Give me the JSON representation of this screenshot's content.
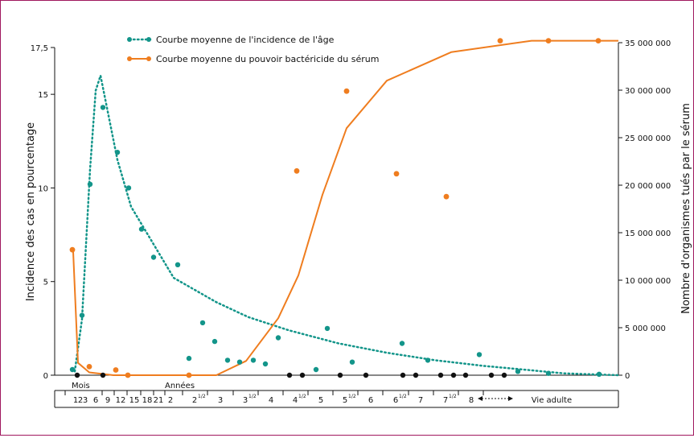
{
  "chart_data": {
    "type": "line",
    "title": "",
    "legend": {
      "placement": "top-left",
      "items": [
        {
          "label": "Courbe moyenne de l'incidence de l'âge",
          "color": "#13958a",
          "style": "dotted"
        },
        {
          "label": "Courbe moyenne du pouvoir bactéricide du sérum",
          "color": "#ef7d1f",
          "style": "solid"
        }
      ]
    },
    "ylabel_left": "Incidence des cas en pourcentage",
    "ylabel_right": "Nombre d'organismes tués par le sérum",
    "y_left": {
      "min": 0,
      "max": 17.5,
      "ticks": [
        0,
        5,
        10,
        15
      ],
      "tick_labels": [
        "0",
        "5",
        "10",
        "15"
      ],
      "top_label": "17,5"
    },
    "y_right": {
      "min": 0,
      "max": 35000000,
      "ticks": [
        0,
        5000000,
        10000000,
        15000000,
        20000000,
        25000000,
        30000000,
        35000000
      ],
      "tick_labels": [
        "0",
        "5 000 000",
        "10 000 000",
        "15 000 000",
        "20 000 000",
        "25 000 000",
        "30 000 000",
        "35 000 000"
      ]
    },
    "x_axis": {
      "section_labels": [
        "Mois",
        "Années"
      ],
      "ticks": [
        {
          "label": "1",
          "sup": ""
        },
        {
          "label": "2",
          "sup": ""
        },
        {
          "label": "3",
          "sup": ""
        },
        {
          "label": "6",
          "sup": ""
        },
        {
          "label": "9",
          "sup": ""
        },
        {
          "label": "12",
          "sup": ""
        },
        {
          "label": "15",
          "sup": ""
        },
        {
          "label": "18",
          "sup": ""
        },
        {
          "label": "21",
          "sup": ""
        },
        {
          "label": "2",
          "sup": ""
        },
        {
          "label": "2",
          "sup": "1/2"
        },
        {
          "label": "3",
          "sup": ""
        },
        {
          "label": "3",
          "sup": "1/2"
        },
        {
          "label": "4",
          "sup": ""
        },
        {
          "label": "4",
          "sup": "1/2"
        },
        {
          "label": "5",
          "sup": ""
        },
        {
          "label": "5",
          "sup": "1/2"
        },
        {
          "label": "6",
          "sup": ""
        },
        {
          "label": "6",
          "sup": "1/2"
        },
        {
          "label": "7",
          "sup": ""
        },
        {
          "label": "7",
          "sup": "1/2"
        },
        {
          "label": "8",
          "sup": ""
        },
        {
          "label": "Vie adulte",
          "sup": ""
        }
      ]
    },
    "series": [
      {
        "name": "Courbe moyenne de l'incidence de l'âge",
        "axis": "left",
        "color": "#13958a",
        "points_x": [
          "1 mois",
          "3 mois",
          "5 mois",
          "7 mois",
          "10 mois",
          "13 mois",
          "16 mois",
          "19 mois",
          "2 ans",
          "2 ans",
          "2 1/2 ans",
          "2 1/2 ans",
          "3 ans",
          "3 ans",
          "3 1/2 ans",
          "3 1/2 ans",
          "4 1/2 ans",
          "5 ans",
          "5 1/2 ans",
          "5 1/2 ans",
          "6 1/2 ans",
          "7 ans",
          "8 ans",
          "8 ans",
          "vie adulte",
          "vie adulte"
        ],
        "points_y": [
          0.3,
          3.2,
          10.2,
          14.3,
          11.9,
          10.0,
          7.8,
          6.3,
          0.9,
          5.9,
          2.8,
          1.8,
          0.8,
          0.7,
          0.8,
          0.6,
          2.0,
          0.3,
          2.5,
          0.7,
          1.7,
          0.8,
          1.1,
          0.2,
          0.1,
          0.05
        ],
        "curve_y": [
          0.2,
          3.0,
          11.0,
          15.2,
          16.0,
          14.5,
          11.5,
          9.0,
          5.2,
          3.9,
          3.6,
          3.1,
          2.4,
          1.7,
          1.2,
          0.8,
          0.5,
          0.3,
          0.1,
          0.0
        ]
      },
      {
        "name": "Courbe moyenne du pouvoir bactéricide du sérum",
        "axis": "right",
        "color": "#ef7d1f",
        "points_x": [
          "naissance",
          "3 mois",
          "7 mois",
          "12 mois",
          "2 ans",
          "4 1/2 ans",
          "5 1/2 ans",
          "6 1/2 ans",
          "7 1/2 ans",
          "8 1/2 ans",
          "vie adulte",
          "vie adulte"
        ],
        "points_y": [
          13200000,
          900000,
          550000,
          0,
          0,
          21500000,
          29900000,
          21200000,
          18800000,
          35200000,
          35200000,
          35200000
        ],
        "curve_y": [
          13000000,
          1300000,
          300000,
          0,
          0,
          0,
          1500000,
          6000000,
          10500000,
          19000000,
          26000000,
          31000000,
          34000000,
          35200000,
          35200000
        ]
      }
    ],
    "black_markers": "points noirs sur l'axe 0",
    "grid": false
  }
}
